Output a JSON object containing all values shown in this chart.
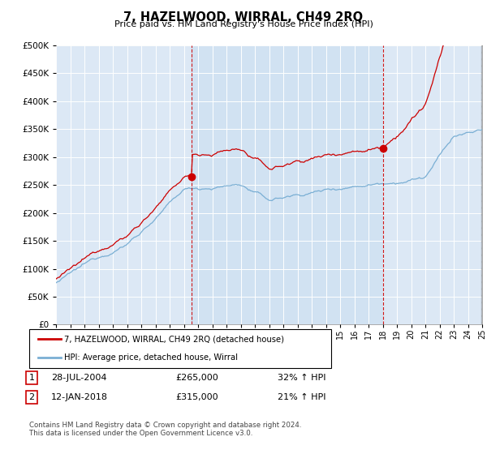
{
  "title": "7, HAZELWOOD, WIRRAL, CH49 2RQ",
  "subtitle": "Price paid vs. HM Land Registry's House Price Index (HPI)",
  "legend_line1": "7, HAZELWOOD, WIRRAL, CH49 2RQ (detached house)",
  "legend_line2": "HPI: Average price, detached house, Wirral",
  "annotation1_date": "28-JUL-2004",
  "annotation1_price": "£265,000",
  "annotation1_hpi": "32% ↑ HPI",
  "annotation2_date": "12-JAN-2018",
  "annotation2_price": "£315,000",
  "annotation2_hpi": "21% ↑ HPI",
  "footer": "Contains HM Land Registry data © Crown copyright and database right 2024.\nThis data is licensed under the Open Government Licence v3.0.",
  "ylim": [
    0,
    500000
  ],
  "yticks": [
    0,
    50000,
    100000,
    150000,
    200000,
    250000,
    300000,
    350000,
    400000,
    450000,
    500000
  ],
  "plot_bg": "#dce8f5",
  "hpi_color": "#7aafd4",
  "price_color": "#cc0000",
  "vline_color": "#cc0000",
  "sale1_x": 2004.57,
  "sale1_y": 265000,
  "sale2_x": 2018.03,
  "sale2_y": 315000,
  "xmin": 1995,
  "xmax": 2025
}
